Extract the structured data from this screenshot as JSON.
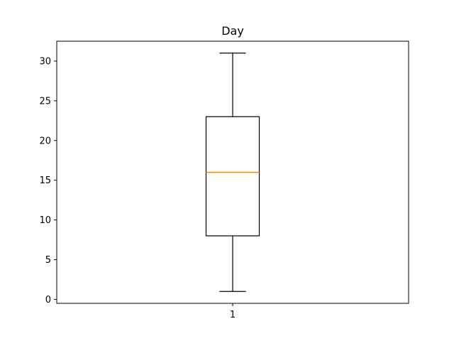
{
  "chart_data": {
    "type": "boxplot",
    "title": "Day",
    "xlabel": "",
    "ylabel": "",
    "categories": [
      "1"
    ],
    "boxes": [
      {
        "whisker_low": 1,
        "q1": 8,
        "median": 16,
        "q3": 23,
        "whisker_high": 31
      }
    ],
    "ylim": [
      -0.5,
      32.5
    ],
    "yticks": [
      "0",
      "5",
      "10",
      "15",
      "20",
      "25",
      "30"
    ],
    "grid": false,
    "colors": {
      "box": "#000000",
      "median": "#ff7f0e"
    }
  }
}
